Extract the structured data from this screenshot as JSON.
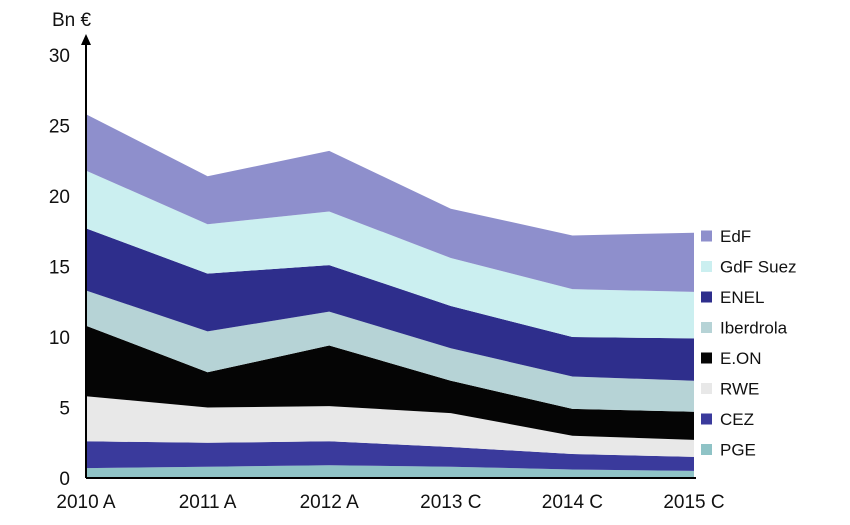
{
  "chart_data": {
    "type": "area",
    "stacked": true,
    "title": "",
    "unit_label": "Bn €",
    "xlabel": "",
    "ylabel": "",
    "categories": [
      "2010 A",
      "2011 A",
      "2012 A",
      "2013 C",
      "2014 C",
      "2015 C"
    ],
    "ylim": [
      0,
      30
    ],
    "yticks": [
      0,
      5,
      10,
      15,
      20,
      25,
      30
    ],
    "grid": false,
    "legend_position": "right",
    "series": [
      {
        "name": "PGE",
        "color": "#8fc3c6",
        "values": [
          0.7,
          0.8,
          0.9,
          0.8,
          0.6,
          0.5
        ]
      },
      {
        "name": "CEZ",
        "color": "#3a3a9c",
        "values": [
          1.9,
          1.7,
          1.7,
          1.4,
          1.1,
          1.0
        ]
      },
      {
        "name": "RWE",
        "color": "#e8e8e8",
        "values": [
          3.2,
          2.5,
          2.5,
          2.4,
          1.3,
          1.2
        ]
      },
      {
        "name": "E.ON",
        "color": "#050505",
        "values": [
          5.0,
          2.5,
          4.3,
          2.3,
          1.9,
          2.0
        ]
      },
      {
        "name": "Iberdrola",
        "color": "#b6d3d6",
        "values": [
          2.5,
          2.9,
          2.4,
          2.3,
          2.3,
          2.2
        ]
      },
      {
        "name": "ENEL",
        "color": "#2e2e8c",
        "values": [
          4.4,
          4.1,
          3.3,
          3.0,
          2.8,
          3.0
        ]
      },
      {
        "name": "GdF Suez",
        "color": "#cbeff0",
        "values": [
          4.1,
          3.5,
          3.8,
          3.4,
          3.4,
          3.3
        ]
      },
      {
        "name": "EdF",
        "color": "#8e8fcc",
        "values": [
          4.0,
          3.4,
          4.3,
          3.5,
          3.8,
          4.2
        ]
      }
    ]
  }
}
